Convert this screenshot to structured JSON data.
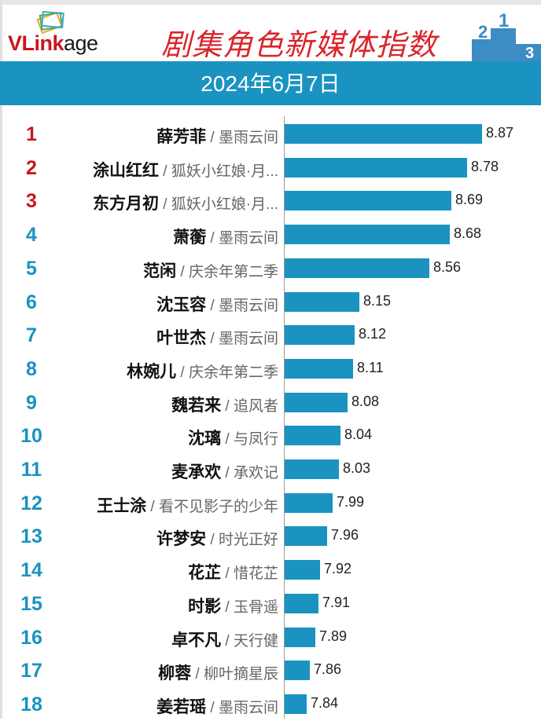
{
  "header": {
    "brand_red": "VLink",
    "brand_black": "age",
    "title": "剧集角色新媒体指数",
    "date": "2024年6月7日",
    "podium_labels": [
      "2",
      "1",
      "3"
    ]
  },
  "colors": {
    "bar": "#1a93c0",
    "top_rank": "#c8161d",
    "rank": "#1a93c0"
  },
  "chart_data": {
    "type": "bar",
    "orientation": "horizontal",
    "title": "剧集角色新媒体指数",
    "subtitle": "2024年6月7日",
    "xlim": [
      7.71,
      9.0
    ],
    "items": [
      {
        "rank": "1",
        "name": "薛芳菲",
        "show": "墨雨云间",
        "value": 8.87
      },
      {
        "rank": "2",
        "name": "涂山红红",
        "show": "狐妖小红娘·月...",
        "value": 8.78
      },
      {
        "rank": "3",
        "name": "东方月初",
        "show": "狐妖小红娘·月...",
        "value": 8.69
      },
      {
        "rank": "4",
        "name": "萧蘅",
        "show": "墨雨云间",
        "value": 8.68
      },
      {
        "rank": "5",
        "name": "范闲",
        "show": "庆余年第二季",
        "value": 8.56
      },
      {
        "rank": "6",
        "name": "沈玉容",
        "show": "墨雨云间",
        "value": 8.15
      },
      {
        "rank": "7",
        "name": "叶世杰",
        "show": "墨雨云间",
        "value": 8.12
      },
      {
        "rank": "8",
        "name": "林婉儿",
        "show": "庆余年第二季",
        "value": 8.11
      },
      {
        "rank": "9",
        "name": "魏若来",
        "show": "追风者",
        "value": 8.08
      },
      {
        "rank": "10",
        "name": "沈璃",
        "show": "与凤行",
        "value": 8.04
      },
      {
        "rank": "11",
        "name": "麦承欢",
        "show": "承欢记",
        "value": 8.03
      },
      {
        "rank": "12",
        "name": "王士涂",
        "show": "看不见影子的少年",
        "value": 7.99
      },
      {
        "rank": "13",
        "name": "许梦安",
        "show": "时光正好",
        "value": 7.96
      },
      {
        "rank": "14",
        "name": "花芷",
        "show": "惜花芷",
        "value": 7.92
      },
      {
        "rank": "15",
        "name": "时影",
        "show": "玉骨遥",
        "value": 7.91
      },
      {
        "rank": "16",
        "name": "卓不凡",
        "show": "天行健",
        "value": 7.89
      },
      {
        "rank": "17",
        "name": "柳蓉",
        "show": "柳叶摘星辰",
        "value": 7.86
      },
      {
        "rank": "18",
        "name": "姜若瑶",
        "show": "墨雨云间",
        "value": 7.84
      }
    ]
  }
}
